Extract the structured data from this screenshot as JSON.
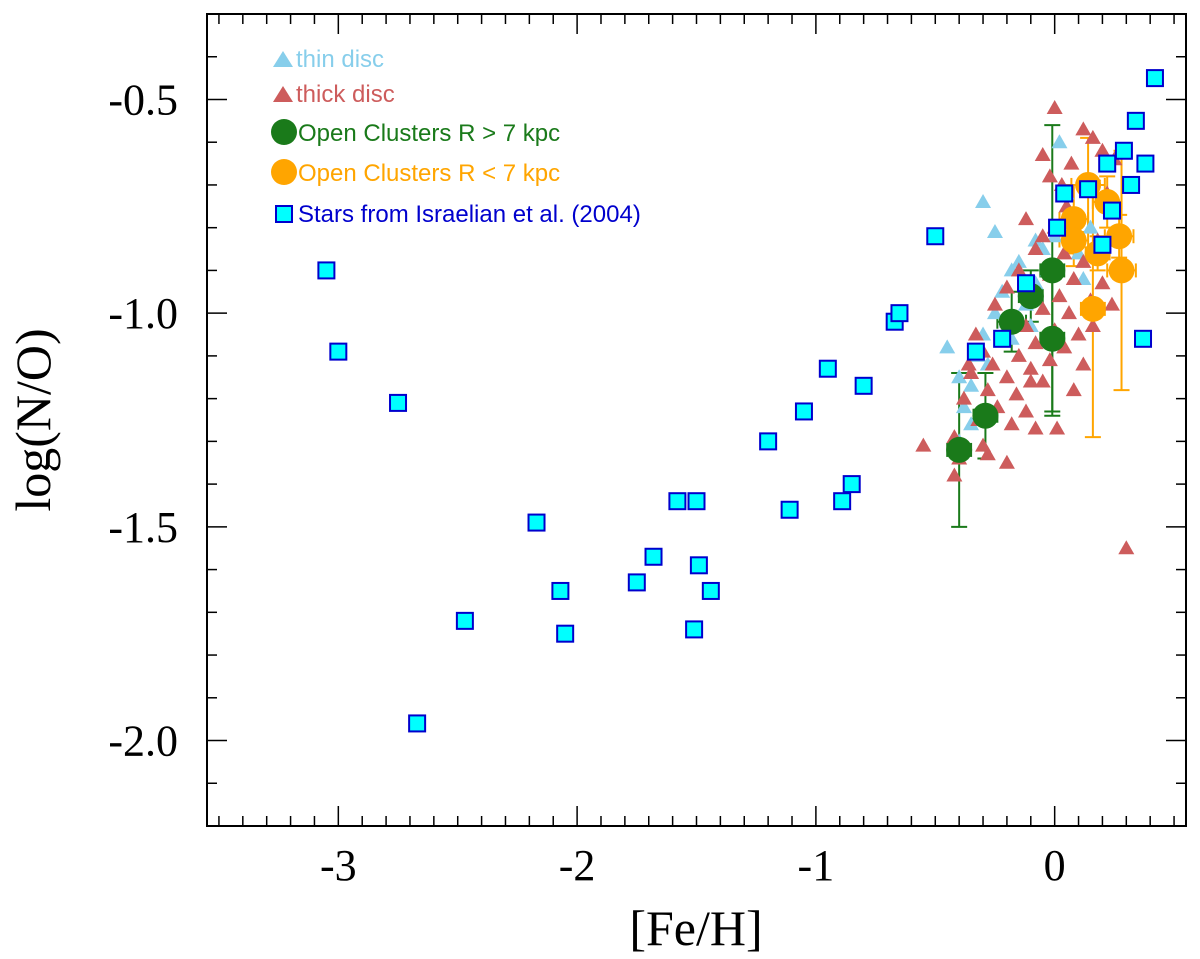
{
  "chart_data": {
    "type": "scatter",
    "title": "",
    "xlabel": "[Fe/H]",
    "ylabel": "log(N/O)",
    "xlim": [
      -3.55,
      0.55
    ],
    "ylim": [
      -2.2,
      -0.3
    ],
    "xticks": [
      {
        "v": -3,
        "label": "-3"
      },
      {
        "v": -2,
        "label": "-2"
      },
      {
        "v": -1,
        "label": "-1"
      },
      {
        "v": 0,
        "label": "0"
      }
    ],
    "yticks": [
      {
        "v": -0.5,
        "label": "-0.5"
      },
      {
        "v": -1.0,
        "label": "-1.0"
      },
      {
        "v": -1.5,
        "label": "-1.5"
      },
      {
        "v": -2.0,
        "label": "-2.0"
      }
    ],
    "x_minor_step": 0.1,
    "y_minor_step": 0.1,
    "legend_position": "top-left",
    "series": [
      {
        "name": "thin disc",
        "marker": "triangle",
        "color": "#87CEEB",
        "points": [
          [
            -0.45,
            -1.08
          ],
          [
            -0.4,
            -1.15
          ],
          [
            -0.38,
            -1.22
          ],
          [
            -0.35,
            -1.17
          ],
          [
            -0.32,
            -1.1
          ],
          [
            -0.3,
            -1.05
          ],
          [
            -0.28,
            -1.12
          ],
          [
            -0.25,
            -1.0
          ],
          [
            -0.22,
            -0.95
          ],
          [
            -0.2,
            -1.02
          ],
          [
            -0.18,
            -0.9
          ],
          [
            -0.15,
            -0.88
          ],
          [
            -0.12,
            -0.98
          ],
          [
            -0.1,
            -1.03
          ],
          [
            -0.08,
            -0.93
          ],
          [
            -0.05,
            -0.85
          ],
          [
            -0.03,
            -0.9
          ],
          [
            0.0,
            -0.82
          ],
          [
            0.02,
            -0.6
          ],
          [
            0.05,
            -0.72
          ],
          [
            0.08,
            -0.78
          ],
          [
            0.1,
            -0.86
          ],
          [
            0.12,
            -0.92
          ],
          [
            -0.3,
            -0.74
          ],
          [
            -0.25,
            -0.81
          ],
          [
            -0.4,
            -1.3
          ],
          [
            -0.35,
            -1.26
          ],
          [
            -0.18,
            -1.06
          ],
          [
            -0.08,
            -0.83
          ],
          [
            0.15,
            -0.8
          ]
        ]
      },
      {
        "name": "thick disc",
        "marker": "triangle",
        "color": "#CD5C5C",
        "points": [
          [
            0.0,
            -0.52
          ],
          [
            0.12,
            -0.57
          ],
          [
            0.16,
            -0.59
          ],
          [
            0.2,
            -0.62
          ],
          [
            -0.05,
            -0.63
          ],
          [
            0.07,
            -0.65
          ],
          [
            0.25,
            -0.64
          ],
          [
            -0.02,
            -0.68
          ],
          [
            0.14,
            -0.7
          ],
          [
            0.22,
            -0.72
          ],
          [
            0.05,
            -0.75
          ],
          [
            -0.12,
            -0.78
          ],
          [
            0.0,
            -0.8
          ],
          [
            0.1,
            -0.82
          ],
          [
            0.18,
            -0.83
          ],
          [
            -0.08,
            -0.85
          ],
          [
            0.04,
            -0.86
          ],
          [
            0.12,
            -0.88
          ],
          [
            -0.15,
            -0.9
          ],
          [
            -0.02,
            -0.91
          ],
          [
            0.08,
            -0.92
          ],
          [
            0.2,
            -0.93
          ],
          [
            -0.2,
            -0.94
          ],
          [
            -0.1,
            -0.95
          ],
          [
            0.02,
            -0.96
          ],
          [
            0.15,
            -0.97
          ],
          [
            -0.25,
            -0.98
          ],
          [
            -0.05,
            -0.99
          ],
          [
            0.06,
            -1.0
          ],
          [
            -0.18,
            -1.01
          ],
          [
            -0.12,
            -1.03
          ],
          [
            0.0,
            -1.04
          ],
          [
            0.1,
            -1.05
          ],
          [
            -0.22,
            -1.06
          ],
          [
            -0.08,
            -1.07
          ],
          [
            0.04,
            -1.08
          ],
          [
            -0.3,
            -1.09
          ],
          [
            -0.15,
            -1.1
          ],
          [
            -0.02,
            -1.11
          ],
          [
            -0.26,
            -1.12
          ],
          [
            -0.1,
            -1.13
          ],
          [
            -0.35,
            -1.14
          ],
          [
            -0.2,
            -1.15
          ],
          [
            -0.05,
            -1.16
          ],
          [
            -0.28,
            -1.18
          ],
          [
            -0.16,
            -1.19
          ],
          [
            -0.38,
            -1.2
          ],
          [
            -0.24,
            -1.22
          ],
          [
            -0.12,
            -1.23
          ],
          [
            -0.32,
            -1.25
          ],
          [
            -0.18,
            -1.26
          ],
          [
            -0.08,
            -1.27
          ],
          [
            -0.42,
            -1.29
          ],
          [
            -0.3,
            -1.31
          ],
          [
            -0.55,
            -1.31
          ],
          [
            -0.28,
            -1.33
          ],
          [
            -0.4,
            -1.34
          ],
          [
            -0.42,
            -1.38
          ],
          [
            0.01,
            -1.27
          ],
          [
            0.08,
            -1.18
          ],
          [
            0.16,
            -1.03
          ],
          [
            0.24,
            -0.98
          ],
          [
            0.3,
            -1.55
          ],
          [
            -0.05,
            -0.82
          ],
          [
            0.03,
            -0.7
          ],
          [
            -0.1,
            -1.16
          ],
          [
            -0.33,
            -1.05
          ],
          [
            -0.36,
            -1.12
          ],
          [
            0.12,
            -1.12
          ],
          [
            -0.2,
            -1.35
          ]
        ]
      },
      {
        "name": "Open Clusters R > 7 kpc",
        "marker": "circle",
        "color": "#1A7A1A",
        "points": [
          {
            "x": -0.4,
            "y": -1.32,
            "xerr": 0.05,
            "yerr": 0.18
          },
          {
            "x": -0.29,
            "y": -1.24,
            "xerr": 0.05,
            "yerr": 0.1
          },
          {
            "x": -0.18,
            "y": -1.02,
            "xerr": 0.06,
            "yerr": 0.07
          },
          {
            "x": -0.1,
            "y": -0.96,
            "xerr": 0.05,
            "yerr": 0.06
          },
          {
            "x": -0.01,
            "y": -0.9,
            "xerr": 0.05,
            "yerr": 0.34
          },
          {
            "x": -0.01,
            "y": -1.06,
            "xerr": 0.05,
            "yerr": 0.17
          }
        ]
      },
      {
        "name": "Open Clusters R < 7 kpc",
        "marker": "circle",
        "color": "#FFA500",
        "points": [
          {
            "x": 0.08,
            "y": -0.78,
            "xerr": 0.06,
            "yerr": 0.08
          },
          {
            "x": 0.14,
            "y": -0.7,
            "xerr": 0.07,
            "yerr": 0.11
          },
          {
            "x": 0.22,
            "y": -0.74,
            "xerr": 0.06,
            "yerr": 0.06
          },
          {
            "x": 0.08,
            "y": -0.83,
            "xerr": 0.06,
            "yerr": 0.06
          },
          {
            "x": 0.27,
            "y": -0.82,
            "xerr": 0.06,
            "yerr": 0.05
          },
          {
            "x": 0.18,
            "y": -0.86,
            "xerr": 0.05,
            "yerr": 0.04
          },
          {
            "x": 0.28,
            "y": -0.9,
            "xerr": 0.06,
            "yerr": 0.28
          },
          {
            "x": 0.16,
            "y": -0.99,
            "xerr": 0.05,
            "yerr": 0.3
          }
        ]
      },
      {
        "name": "Stars from Israelian et al. (2004)",
        "marker": "square",
        "color": "#00FFFF",
        "edge_color": "#0000CD",
        "points": [
          [
            -3.05,
            -0.9
          ],
          [
            -3.0,
            -1.09
          ],
          [
            -2.75,
            -1.21
          ],
          [
            -2.67,
            -1.96
          ],
          [
            -2.47,
            -1.72
          ],
          [
            -2.17,
            -1.49
          ],
          [
            -2.07,
            -1.65
          ],
          [
            -2.05,
            -1.75
          ],
          [
            -1.75,
            -1.63
          ],
          [
            -1.68,
            -1.57
          ],
          [
            -1.58,
            -1.44
          ],
          [
            -1.5,
            -1.44
          ],
          [
            -1.49,
            -1.59
          ],
          [
            -1.51,
            -1.74
          ],
          [
            -1.44,
            -1.65
          ],
          [
            -1.2,
            -1.3
          ],
          [
            -1.11,
            -1.46
          ],
          [
            -1.05,
            -1.23
          ],
          [
            -0.95,
            -1.13
          ],
          [
            -0.89,
            -1.44
          ],
          [
            -0.85,
            -1.4
          ],
          [
            -0.8,
            -1.17
          ],
          [
            -0.67,
            -1.02
          ],
          [
            -0.65,
            -1.0
          ],
          [
            -0.5,
            -0.82
          ],
          [
            -0.33,
            -1.09
          ],
          [
            -0.22,
            -1.06
          ],
          [
            -0.12,
            -0.93
          ],
          [
            0.01,
            -0.8
          ],
          [
            0.04,
            -0.72
          ],
          [
            0.14,
            -0.71
          ],
          [
            0.22,
            -0.65
          ],
          [
            0.24,
            -0.76
          ],
          [
            0.2,
            -0.84
          ],
          [
            0.29,
            -0.62
          ],
          [
            0.32,
            -0.7
          ],
          [
            0.34,
            -0.55
          ],
          [
            0.38,
            -0.65
          ],
          [
            0.37,
            -1.06
          ],
          [
            0.42,
            -0.45
          ]
        ]
      }
    ]
  }
}
